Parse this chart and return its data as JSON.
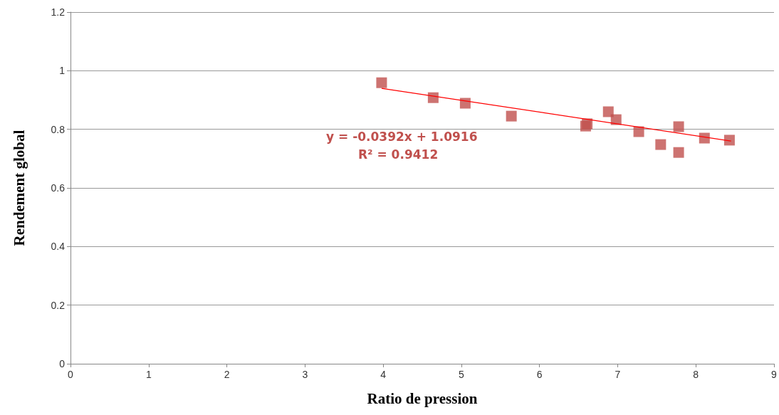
{
  "chart_data": {
    "type": "scatter",
    "xlabel": "Ratio de pression",
    "ylabel": "Rendement global",
    "xlim": [
      0,
      9
    ],
    "xticks": [
      0,
      1,
      2,
      3,
      4,
      5,
      6,
      7,
      8,
      9
    ],
    "ylim": [
      0,
      1.2
    ],
    "yticks": [
      0,
      0.2,
      0.4,
      0.6,
      0.8,
      1,
      1.2
    ],
    "grid": "y",
    "series": [
      {
        "marker": "square",
        "color": "#c0504d",
        "x": [
          3.98,
          4.64,
          5.05,
          5.64,
          6.59,
          6.61,
          6.88,
          6.98,
          7.27,
          7.55,
          7.78,
          7.78,
          8.11,
          8.43
        ],
        "values": [
          0.959,
          0.908,
          0.889,
          0.845,
          0.811,
          0.819,
          0.86,
          0.833,
          0.792,
          0.748,
          0.809,
          0.721,
          0.77,
          0.763
        ]
      },
      {
        "type": "line",
        "marker": "none",
        "color": "#ff0000",
        "x": [
          3.98,
          8.45
        ],
        "values": [
          0.94,
          0.76
        ]
      }
    ],
    "annotations": [
      "y = -0.0392x + 1.0916",
      "R² = 0.9412"
    ]
  }
}
